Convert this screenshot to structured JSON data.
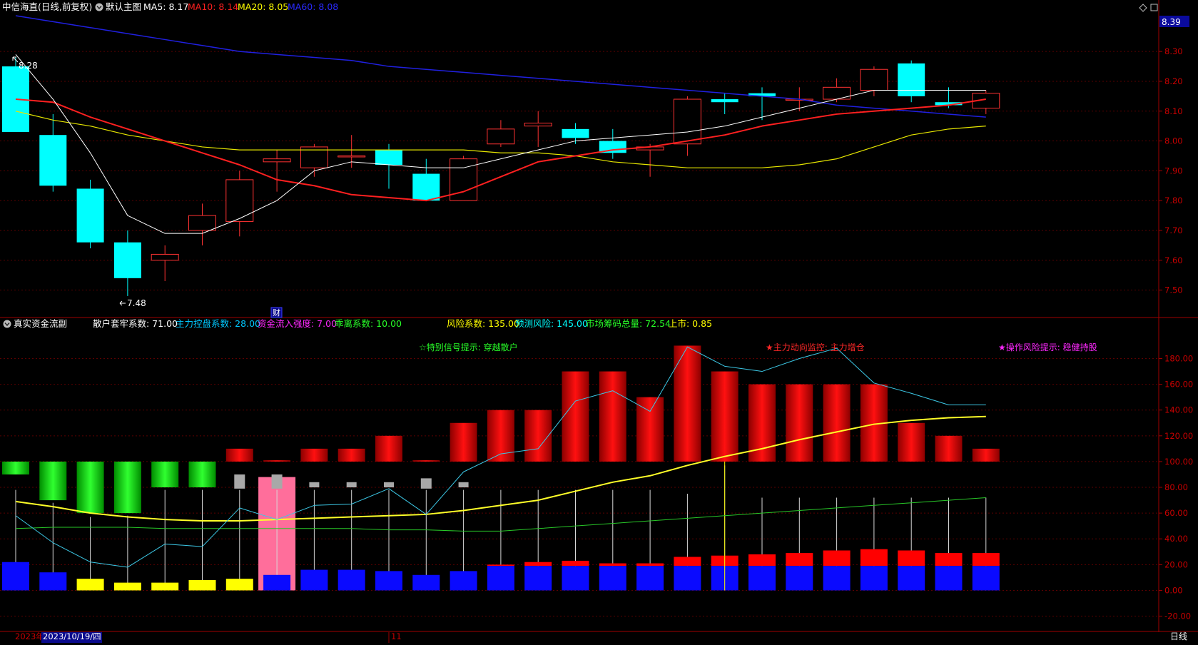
{
  "colors": {
    "background": "#000000",
    "grid": "#5a0000",
    "border": "#a00000",
    "up": "#ff3232",
    "down": "#00ffff",
    "ma5": "#ffffff",
    "ma10": "#ff2020",
    "ma20": "#e6e600",
    "ma60": "#2020e0",
    "cyan_line": "#3cc8e6",
    "yellow_line": "#ffff28",
    "green_line": "#28c828",
    "blue_bar": "#0a0aff",
    "red_bar": "#ff0000",
    "yellow_bar": "#ffff00",
    "pink_highlight": "#ff6e9b",
    "gray_marker": "#a8a8a8",
    "price_tag_bg": "#0a0a9c"
  },
  "header": {
    "stock_name": "中信海直(日线,前复权)",
    "main_chart_label": "默认主图",
    "ma5": "MA5: 8.17",
    "ma10": "MA10: 8.14",
    "ma20": "MA20: 8.05",
    "ma60": "MA60: 8.08",
    "price_tag": "8.39"
  },
  "price_panel": {
    "high_label": "8.28",
    "low_label": "7.48",
    "finance_marker": "财",
    "axis_ticks": [
      "8.30",
      "8.20",
      "8.10",
      "8.00",
      "7.90",
      "7.80",
      "7.70",
      "7.60",
      "7.50"
    ],
    "ylim": [
      7.42,
      8.42
    ]
  },
  "indicator_header": {
    "name": "真实资金流副",
    "items": [
      {
        "text": "散户套牢系数: 71.00",
        "color": "#ffffff"
      },
      {
        "text": "主力控盘系数: 28.00",
        "color": "#00c8ff"
      },
      {
        "text": "资金流入强度: 7.00",
        "color": "#ff28ff"
      },
      {
        "text": "乖离系数: 10.00",
        "color": "#28ff28"
      },
      {
        "text": "风险系数: 135.00",
        "color": "#ffff00"
      },
      {
        "text": "预测风险: 145.00",
        "color": "#00ffff"
      },
      {
        "text": "市场筹码总量: 72.54",
        "color": "#28ff28"
      },
      {
        "text": "上市: 0.85",
        "color": "#ffff00"
      }
    ]
  },
  "signals": [
    {
      "text": "☆特别信号提示:  穿越散户",
      "color": "#28ff28"
    },
    {
      "text": "★主力动向监控:  主力增仓",
      "color": "#ff2828"
    },
    {
      "text": "★操作风险提示:  稳健持股",
      "color": "#ff28ff"
    }
  ],
  "indicator_panel": {
    "axis_ticks": [
      "180.00",
      "160.00",
      "140.00",
      "120.00",
      "100.00",
      "80.00",
      "60.00",
      "40.00",
      "20.00",
      "0.00",
      "-20.00"
    ],
    "ylim": [
      -28,
      198
    ]
  },
  "bottom_bar": {
    "year_label": "2023年",
    "date_label": "2023/10/19/四",
    "month_label": "11",
    "period_label": "日线"
  },
  "chart_data": {
    "type": "candlestick",
    "candles": [
      {
        "o": 8.25,
        "c": 8.03,
        "h": 8.28,
        "l": 8.03
      },
      {
        "o": 8.02,
        "c": 7.85,
        "h": 8.09,
        "l": 7.83
      },
      {
        "o": 7.84,
        "c": 7.66,
        "h": 7.87,
        "l": 7.64
      },
      {
        "o": 7.66,
        "c": 7.54,
        "h": 7.7,
        "l": 7.48
      },
      {
        "o": 7.6,
        "c": 7.62,
        "h": 7.65,
        "l": 7.53
      },
      {
        "o": 7.7,
        "c": 7.75,
        "h": 7.79,
        "l": 7.65
      },
      {
        "o": 7.73,
        "c": 7.87,
        "h": 7.9,
        "l": 7.68
      },
      {
        "o": 7.93,
        "c": 7.94,
        "h": 7.97,
        "l": 7.83
      },
      {
        "o": 7.91,
        "c": 7.98,
        "h": 7.99,
        "l": 7.88
      },
      {
        "o": 7.95,
        "c": 7.95,
        "h": 8.02,
        "l": 7.91
      },
      {
        "o": 7.97,
        "c": 7.92,
        "h": 7.99,
        "l": 7.84
      },
      {
        "o": 7.89,
        "c": 7.8,
        "h": 7.94,
        "l": 7.8
      },
      {
        "o": 7.8,
        "c": 7.94,
        "h": 7.95,
        "l": 7.8
      },
      {
        "o": 7.99,
        "c": 8.04,
        "h": 8.07,
        "l": 7.98
      },
      {
        "o": 8.05,
        "c": 8.06,
        "h": 8.1,
        "l": 7.98
      },
      {
        "o": 8.04,
        "c": 8.01,
        "h": 8.06,
        "l": 7.99
      },
      {
        "o": 8.0,
        "c": 7.96,
        "h": 8.04,
        "l": 7.94
      },
      {
        "o": 7.97,
        "c": 7.98,
        "h": 7.99,
        "l": 7.88
      },
      {
        "o": 7.99,
        "c": 8.14,
        "h": 8.15,
        "l": 7.95
      },
      {
        "o": 8.14,
        "c": 8.13,
        "h": 8.16,
        "l": 8.09
      },
      {
        "o": 8.16,
        "c": 8.15,
        "h": 8.18,
        "l": 8.07
      },
      {
        "o": 8.14,
        "c": 8.14,
        "h": 8.18,
        "l": 8.1
      },
      {
        "o": 8.14,
        "c": 8.18,
        "h": 8.21,
        "l": 8.13
      },
      {
        "o": 8.17,
        "c": 8.24,
        "h": 8.25,
        "l": 8.15
      },
      {
        "o": 8.26,
        "c": 8.15,
        "h": 8.27,
        "l": 8.13
      },
      {
        "o": 8.13,
        "c": 8.12,
        "h": 8.18,
        "l": 8.11
      },
      {
        "o": 8.11,
        "c": 8.16,
        "h": 8.17,
        "l": 8.09
      }
    ],
    "ma5": [
      8.29,
      8.14,
      7.96,
      7.75,
      7.69,
      7.69,
      7.74,
      7.8,
      7.9,
      7.93,
      7.92,
      7.91,
      7.91,
      7.94,
      7.97,
      8.0,
      8.01,
      8.02,
      8.03,
      8.05,
      8.08,
      8.11,
      8.14,
      8.17,
      8.17,
      8.17,
      8.17
    ],
    "ma10": [
      8.14,
      8.13,
      8.08,
      8.04,
      8.0,
      7.96,
      7.92,
      7.87,
      7.85,
      7.82,
      7.81,
      7.8,
      7.83,
      7.88,
      7.93,
      7.95,
      7.97,
      7.98,
      8.0,
      8.02,
      8.05,
      8.07,
      8.09,
      8.1,
      8.11,
      8.12,
      8.14
    ],
    "ma20": [
      8.1,
      8.07,
      8.05,
      8.02,
      8.0,
      7.98,
      7.97,
      7.97,
      7.97,
      7.97,
      7.97,
      7.97,
      7.97,
      7.96,
      7.96,
      7.95,
      7.93,
      7.92,
      7.91,
      7.91,
      7.91,
      7.92,
      7.94,
      7.98,
      8.02,
      8.04,
      8.05
    ],
    "ma60": [
      8.42,
      8.4,
      8.38,
      8.36,
      8.34,
      8.32,
      8.3,
      8.29,
      8.28,
      8.27,
      8.25,
      8.24,
      8.23,
      8.22,
      8.21,
      8.2,
      8.19,
      8.18,
      8.17,
      8.16,
      8.15,
      8.14,
      8.12,
      8.11,
      8.1,
      8.09,
      8.08
    ],
    "indicator": {
      "blue_bar": [
        22,
        14,
        9,
        6,
        6,
        8,
        9,
        12,
        16,
        16,
        15,
        12,
        15,
        19,
        19,
        19,
        19,
        19,
        19,
        19,
        19,
        19,
        19,
        19,
        19,
        19,
        19
      ],
      "red_bar_top": [
        0,
        0,
        0,
        0,
        0,
        0,
        0,
        0,
        0,
        0,
        0,
        0,
        0,
        20,
        22,
        23,
        21,
        21,
        26,
        27,
        28,
        29,
        31,
        32,
        31,
        29,
        29
      ],
      "bar_is_yellow": [
        false,
        false,
        true,
        true,
        true,
        true,
        true,
        false,
        false,
        false,
        false,
        false,
        false,
        false,
        false,
        false,
        false,
        false,
        false,
        false,
        false,
        false,
        false,
        false,
        false,
        false,
        false
      ],
      "green_bars": [
        [
          100,
          90
        ],
        [
          100,
          70
        ],
        [
          100,
          60
        ],
        [
          100,
          60
        ],
        [
          100,
          80
        ],
        [
          100,
          80
        ],
        null,
        null,
        null,
        null,
        null,
        null,
        null,
        null,
        null,
        null,
        null,
        null,
        null,
        null,
        null,
        null,
        null,
        null,
        null,
        null,
        null
      ],
      "red_upper_bars": [
        null,
        null,
        null,
        null,
        null,
        null,
        [
          100,
          110
        ],
        [
          100,
          101
        ],
        [
          100,
          110
        ],
        [
          100,
          110
        ],
        [
          100,
          120
        ],
        [
          100,
          101
        ],
        [
          100,
          130
        ],
        [
          100,
          140
        ],
        [
          100,
          140
        ],
        [
          100,
          170
        ],
        [
          100,
          170
        ],
        [
          100,
          150
        ],
        [
          100,
          190
        ],
        [
          100,
          170
        ],
        [
          100,
          160
        ],
        [
          100,
          160
        ],
        [
          100,
          160
        ],
        [
          100,
          160
        ],
        [
          100,
          130
        ],
        [
          100,
          120
        ],
        [
          100,
          110
        ]
      ],
      "gray_markers": [
        null,
        null,
        null,
        null,
        null,
        null,
        [
          79,
          90
        ],
        [
          79,
          90
        ],
        [
          80,
          84
        ],
        [
          80,
          84
        ],
        [
          80,
          84
        ],
        [
          79,
          87
        ],
        [
          80,
          84
        ],
        null,
        null,
        null,
        null,
        null,
        null,
        null,
        null,
        null,
        null,
        null,
        null,
        null,
        null
      ],
      "whisker_top": [
        78,
        68,
        57,
        58,
        78,
        78,
        78,
        78,
        78,
        78,
        78,
        78,
        78,
        78,
        78,
        78,
        78,
        78,
        75,
        97,
        72,
        72,
        72,
        72,
        72,
        72,
        72
      ],
      "cyan_line": [
        58,
        37,
        22,
        18,
        36,
        34,
        64,
        55,
        66,
        67,
        79,
        59,
        92,
        106,
        110,
        147,
        155,
        139,
        189,
        174,
        170,
        180,
        188,
        161,
        153,
        144,
        144
      ],
      "yellow_line": [
        69,
        65,
        60,
        57,
        55,
        54,
        54,
        55,
        56,
        57,
        58,
        59,
        62,
        66,
        70,
        77,
        84,
        89,
        97,
        104,
        110,
        117,
        123,
        129,
        132,
        134,
        135
      ],
      "green_line": [
        48,
        49,
        49,
        49,
        48,
        48,
        48,
        48,
        48,
        48,
        47,
        47,
        46,
        46,
        48,
        50,
        52,
        54,
        56,
        58,
        60,
        62,
        64,
        66,
        68,
        70,
        72
      ],
      "pink_highlight_index": 7,
      "vertical_marker_index": 19
    }
  }
}
